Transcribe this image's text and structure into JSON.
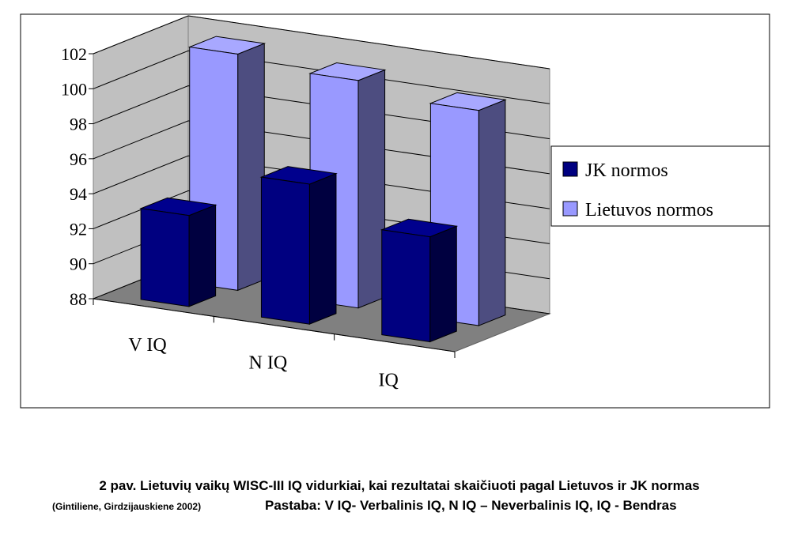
{
  "chart_data": {
    "type": "bar3d",
    "categories": [
      "V IQ",
      "N IQ",
      "IQ"
    ],
    "series": [
      {
        "name": "JK normos",
        "color": "#000080",
        "values": [
          93.2,
          96.0,
          94.0
        ]
      },
      {
        "name": "Lietuvos normos",
        "color": "#9999ff",
        "values": [
          101.5,
          101.0,
          100.3
        ]
      }
    ],
    "ylim": [
      88,
      102
    ],
    "yticks": [
      88,
      90,
      92,
      94,
      96,
      98,
      100,
      102
    ],
    "grid": true,
    "legend": "right",
    "caption": "2 pav. Lietuvių vaikų WISC-III IQ vidurkiai, kai rezultatai skaičiuoti pagal Lietuvos ir JK normas",
    "source": "(Gintiliene, Girdzijauskiene 2002)",
    "note": "Pastaba: V IQ- Verbalinis IQ, N IQ – Neverbalinis IQ, IQ -  Bendras"
  }
}
